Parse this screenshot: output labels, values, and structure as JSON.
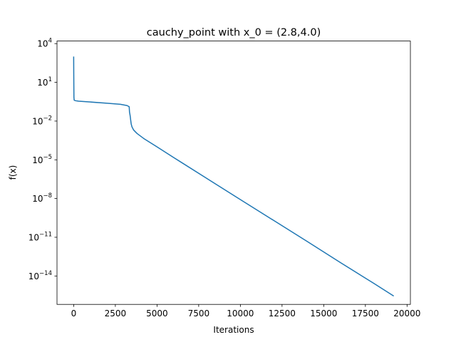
{
  "chart_data": {
    "type": "line",
    "title": "cauchy_point with x_0 = (2.8,4.0)",
    "xlabel": "Iterations",
    "ylabel": "f(x)",
    "yscale": "log",
    "xlim": [
      -1000,
      20200
    ],
    "ylim_log10": [
      -16.2,
      4.2
    ],
    "grid": false,
    "x_ticks": [
      0,
      2500,
      5000,
      7500,
      10000,
      12500,
      15000,
      17500,
      20000
    ],
    "x_tick_labels": [
      "0",
      "2500",
      "5000",
      "7500",
      "10000",
      "12500",
      "15000",
      "17500",
      "20000"
    ],
    "y_ticks_log10": [
      4,
      1,
      -2,
      -5,
      -8,
      -11,
      -14
    ],
    "y_tick_mantissa": [
      "10",
      "10",
      "10",
      "10",
      "10",
      "10",
      "10"
    ],
    "y_tick_exponents": [
      "4",
      "1",
      "−2",
      "−5",
      "−8",
      "−11",
      "−14"
    ],
    "color": "#1f77b4",
    "series": [
      {
        "x": [
          0,
          5,
          15,
          30,
          60,
          100,
          300,
          1000,
          2000,
          2800,
          3200,
          3330,
          3350,
          3380,
          3400,
          3420,
          3450,
          3500,
          3600,
          3800,
          4200,
          5000,
          6000,
          8000,
          10000,
          12000,
          14000,
          16000,
          18000,
          19200
        ],
        "y": [
          1000,
          50,
          0.7,
          0.42,
          0.4,
          0.38,
          0.35,
          0.3,
          0.24,
          0.2,
          0.16,
          0.13,
          0.05,
          0.03,
          0.02,
          0.012,
          0.006,
          0.0035,
          0.002,
          0.0011,
          0.00045,
          0.0001,
          1.5e-05,
          3.5e-07,
          8.3e-09,
          2e-10,
          4.8e-12,
          1.1e-13,
          2.7e-15,
          2.8e-16
        ]
      }
    ]
  }
}
